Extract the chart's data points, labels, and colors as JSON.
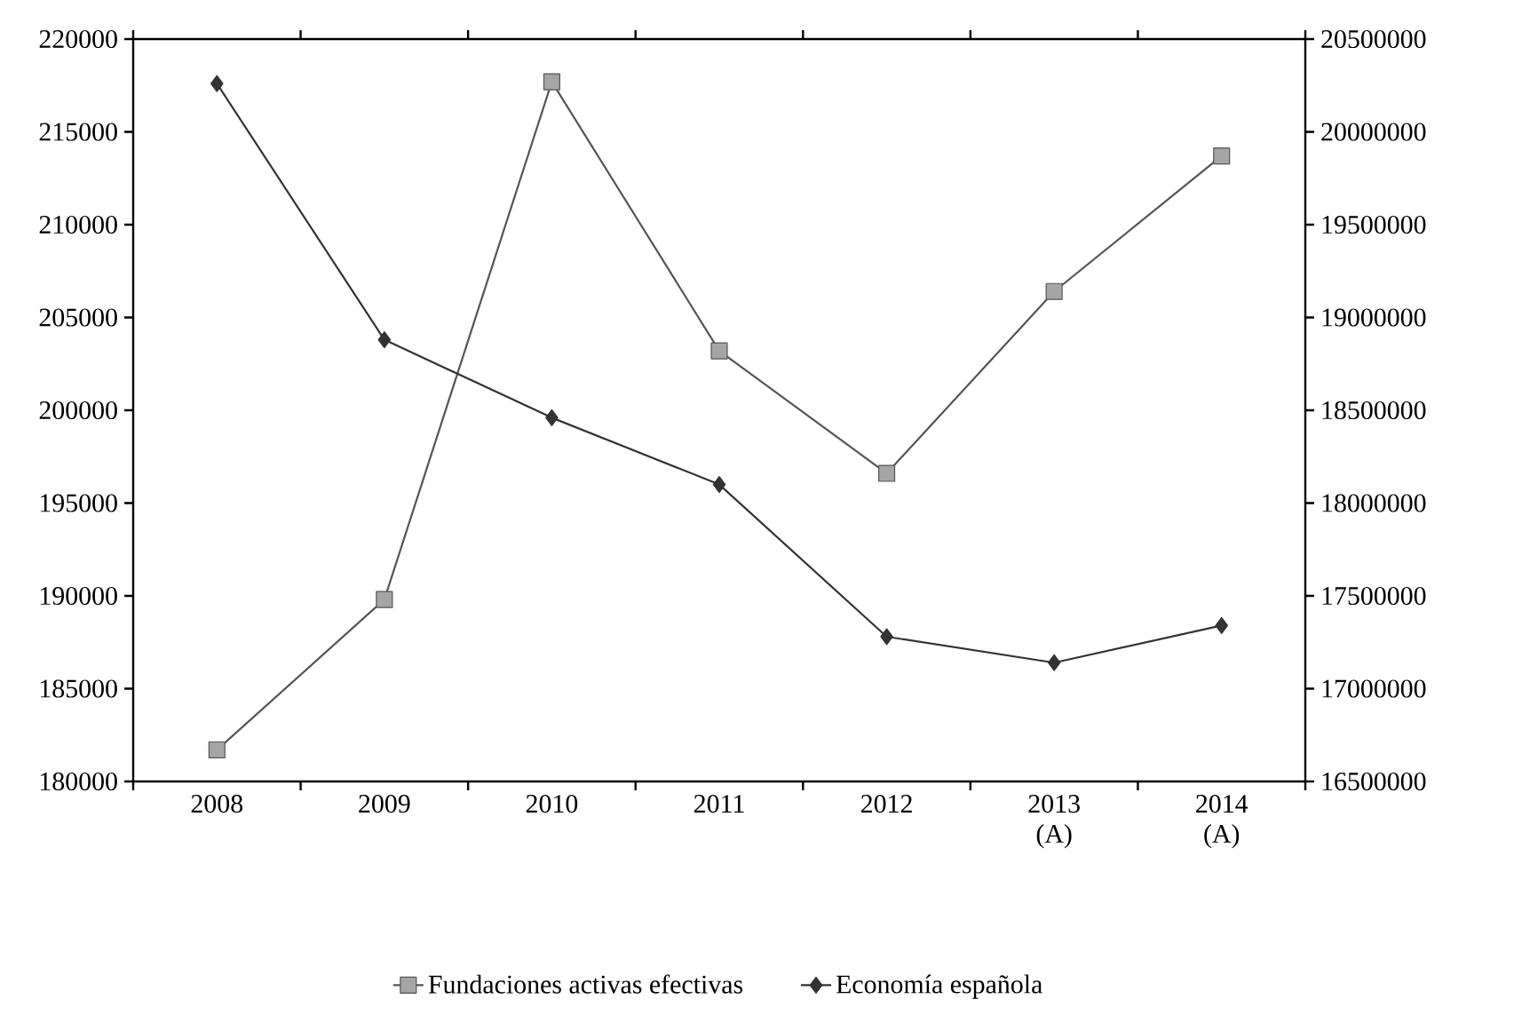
{
  "chart_data": {
    "type": "line",
    "categories": [
      "2008",
      "2009",
      "2010",
      "2011",
      "2012",
      "2013 (A)",
      "2014 (A)"
    ],
    "series": [
      {
        "name": "Fundaciones activas efectivas",
        "color": "#555555",
        "marker": "square",
        "values": [
          181700,
          189800,
          217700,
          203200,
          196600,
          206400,
          213700
        ]
      },
      {
        "name": "Economía española",
        "color": "#333333",
        "marker": "diamond",
        "axis": "y2",
        "values": [
          20260000,
          18880000,
          18460000,
          18100000,
          17280000,
          17140000,
          17340000
        ]
      }
    ],
    "ylim": [
      180000,
      220000
    ],
    "yticks": [
      180000,
      185000,
      190000,
      195000,
      200000,
      205000,
      210000,
      215000,
      220000
    ],
    "y2lim": [
      16500000,
      20500000
    ],
    "y2ticks": [
      16500000,
      17000000,
      17500000,
      18000000,
      18500000,
      19000000,
      19500000,
      20000000,
      20500000
    ],
    "grid": false,
    "legend": "bottom",
    "line_style": "solid"
  }
}
